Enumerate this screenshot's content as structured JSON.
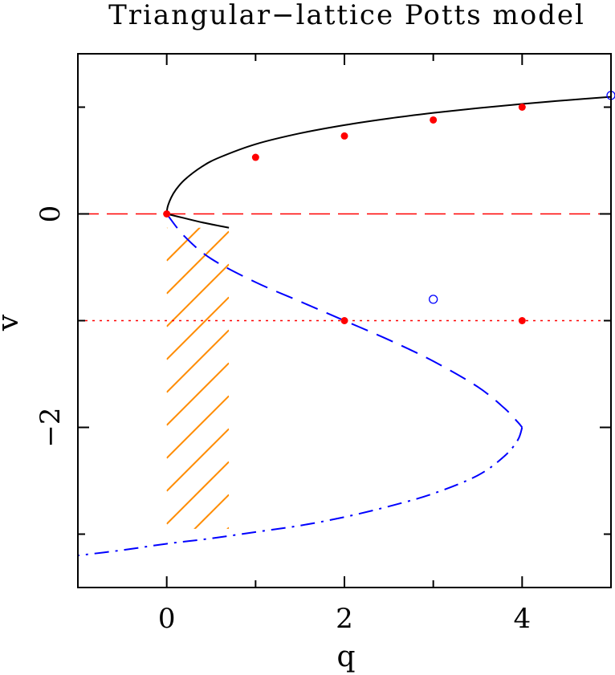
{
  "chart_data": {
    "type": "line",
    "title": "Triangular−lattice Potts model",
    "xlabel": "q",
    "ylabel": "v",
    "xlim": [
      -1,
      5
    ],
    "ylim": [
      -3.5,
      1.5
    ],
    "x_ticks": [
      {
        "value": 0,
        "label": "0"
      },
      {
        "value": 2,
        "label": "2"
      },
      {
        "value": 4,
        "label": "4"
      }
    ],
    "x_minor_ticks": [
      -1,
      1,
      3,
      5
    ],
    "y_ticks": [
      {
        "value": 0,
        "label": "0"
      },
      {
        "value": -2,
        "label": "−2"
      }
    ],
    "y_minor_ticks": [
      1,
      -1,
      -3
    ],
    "grid": false,
    "legend": "none",
    "colors": {
      "upper_branch": "#000000",
      "middle_branch": "#0000ff",
      "lower_branch": "#0000ff",
      "v_zero_line": "#ff0000",
      "v_minus_one_line": "#ff0000",
      "points": "#ff0000",
      "open_points": "#0000ff",
      "hatch": "#ff8c00"
    },
    "horizontal_lines": [
      {
        "y": 0,
        "style": "dashed",
        "color": "#ff0000"
      },
      {
        "y": -1,
        "style": "dotted",
        "color": "#ff0000"
      }
    ],
    "series": [
      {
        "style": "solid",
        "color": "#000000",
        "x": [
          0,
          0.01,
          0.05,
          0.1,
          0.2,
          0.4,
          0.6,
          1.0,
          1.5,
          2.0,
          2.5,
          3.0,
          3.5,
          4.0,
          4.5,
          5.0
        ],
        "y": [
          0,
          0.066,
          0.153,
          0.223,
          0.319,
          0.445,
          0.531,
          0.653,
          0.755,
          0.832,
          0.894,
          0.946,
          0.991,
          1.03,
          1.065,
          1.097
        ]
      },
      {
        "style": "solid",
        "color": "#000000",
        "x": [
          0,
          0.2,
          0.4,
          0.7
        ],
        "y": [
          0,
          -0.04,
          -0.08,
          -0.13
        ]
      },
      {
        "style": "dashed",
        "color": "#0000ff",
        "x": [
          0,
          0.2,
          0.5,
          1.0,
          1.5,
          2.0,
          2.5,
          3.0,
          3.5,
          3.8,
          3.95,
          4.0
        ],
        "y": [
          0,
          -0.21,
          -0.42,
          -0.64,
          -0.82,
          -1.0,
          -1.18,
          -1.38,
          -1.62,
          -1.82,
          -1.95,
          -2.0
        ]
      },
      {
        "style": "dashdot",
        "color": "#0000ff",
        "x": [
          4.0,
          3.95,
          3.8,
          3.5,
          3.0,
          2.5,
          2.0,
          1.5,
          1.0,
          0.5,
          0.0,
          -0.5,
          -1.0
        ],
        "y": [
          -2.0,
          -2.12,
          -2.27,
          -2.45,
          -2.62,
          -2.74,
          -2.84,
          -2.92,
          -2.98,
          -3.04,
          -3.09,
          -3.15,
          -3.2
        ]
      }
    ],
    "points_filled": [
      {
        "x": 0,
        "y": 0
      },
      {
        "x": 1,
        "y": 0.53
      },
      {
        "x": 2,
        "y": 0.73
      },
      {
        "x": 3,
        "y": 0.88
      },
      {
        "x": 4,
        "y": 1.0
      },
      {
        "x": 2,
        "y": -1.0
      },
      {
        "x": 4,
        "y": -1.0
      }
    ],
    "points_open": [
      {
        "x": 3,
        "y": -0.8
      },
      {
        "x": 5,
        "y": 1.11
      }
    ],
    "hatched_region": {
      "x_range": [
        0,
        0.7
      ],
      "y_top": -0.13,
      "y_bottom": -2.95,
      "color": "#ff8c00"
    }
  }
}
